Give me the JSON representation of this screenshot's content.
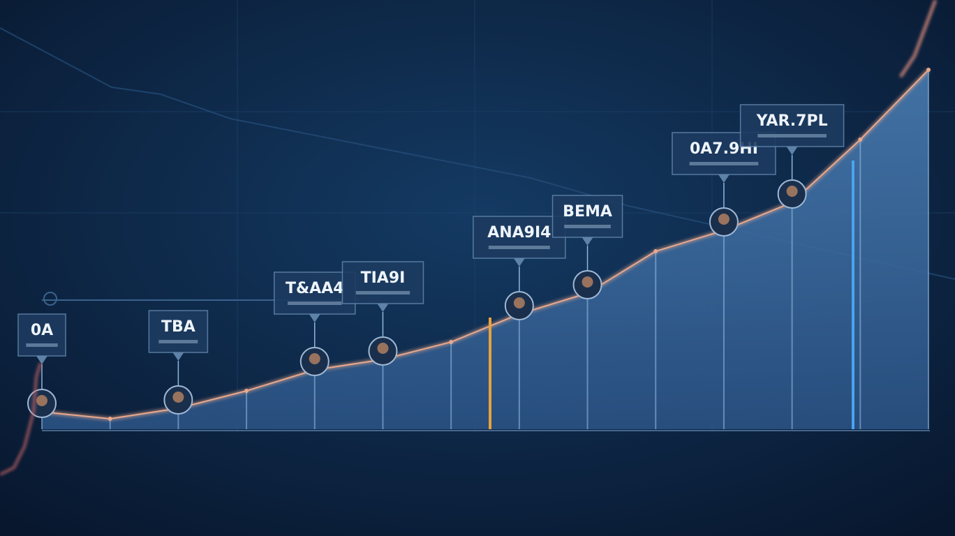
{
  "chart_data": {
    "type": "area",
    "values": [
      5,
      3,
      6,
      11,
      17,
      20,
      25,
      33,
      39,
      51,
      57,
      65,
      83,
      103
    ],
    "point_labels": [
      "0A",
      null,
      "TBA",
      null,
      "T&AA4",
      "TIA9I",
      null,
      "ANA9I4",
      "BEMA",
      null,
      "0A7.9HI",
      "YAR.7PL",
      null,
      null
    ],
    "ylim": [
      0,
      110
    ],
    "color": "#3a6a9c",
    "line_color": "#e9a88c"
  }
}
